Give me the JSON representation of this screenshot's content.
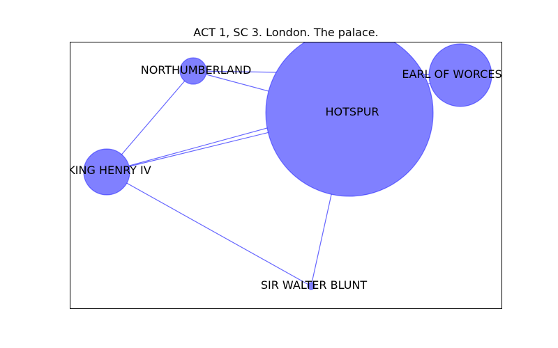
{
  "title": "ACT 1, SC 3. London. The palace.",
  "colors": {
    "node_fill": "#8080ff",
    "node_stroke": "#0000ff",
    "edge": "#6666ff",
    "frame": "#000000",
    "text": "#000000"
  },
  "nodes": [
    {
      "id": "hotspur",
      "label": "HOTSPUR"
    },
    {
      "id": "earl-of-worcester",
      "label": "EARL OF WORCES"
    },
    {
      "id": "northumberland",
      "label": "NORTHUMBERLAND"
    },
    {
      "id": "king-henry-iv",
      "label": "KING HENRY IV"
    },
    {
      "id": "sir-walter-blunt",
      "label": "SIR WALTER BLUNT"
    }
  ],
  "edges": [
    {
      "source": "northumberland",
      "target": "earl-of-worcester"
    },
    {
      "source": "northumberland",
      "target": "hotspur"
    },
    {
      "source": "northumberland",
      "target": "king-henry-iv"
    },
    {
      "source": "king-henry-iv",
      "target": "hotspur"
    },
    {
      "source": "king-henry-iv",
      "target": "earl-of-worcester"
    },
    {
      "source": "king-henry-iv",
      "target": "sir-walter-blunt"
    },
    {
      "source": "hotspur",
      "target": "sir-walter-blunt"
    }
  ]
}
